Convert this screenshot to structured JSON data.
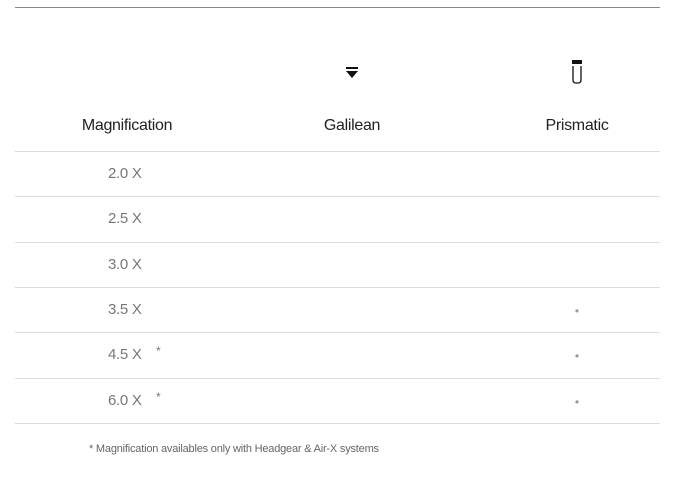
{
  "table": {
    "headers": [
      "Magnification",
      "Galilean",
      "Prismatic"
    ],
    "rows": [
      {
        "magnification": "2.0 X"
      },
      {
        "magnification": "2.5 X"
      },
      {
        "magnification": "3.0 X"
      },
      {
        "magnification": "3.5 X",
        "prismatic": "•"
      },
      {
        "magnification": "4.5 X",
        "note": "*",
        "prismatic": "•"
      },
      {
        "magnification": "6.0 X",
        "note": "*",
        "prismatic": "•"
      }
    ],
    "footnote": "* Magnification availables only with Headgear & Air-X systems"
  }
}
